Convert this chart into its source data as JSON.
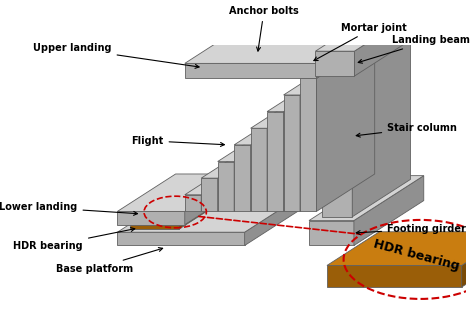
{
  "background_color": "#ffffff",
  "concrete_light": "#d4d4d4",
  "concrete_mid": "#b0b0b0",
  "concrete_dark": "#909090",
  "hdr_top": "#c97d10",
  "hdr_front": "#9a5e08",
  "hdr_side": "#7a4a05",
  "dash_color": "#cc0000",
  "arrow_color": "#000000",
  "text_color": "#000000",
  "labels": {
    "anchor_bolts": "Anchor bolts",
    "mortar_joint": "Mortar joint",
    "upper_landing": "Upper landing",
    "landing_beam": "Landing beam",
    "flight": "Flight",
    "stair_column": "Stair column",
    "lower_landing": "Lower landing",
    "footing_girder": "Footing girder",
    "hdr_bearing_small": "HDR bearing",
    "base_platform": "Base platform",
    "hdr_bearing_large": "HDR bearing"
  },
  "figsize": [
    4.74,
    3.16
  ],
  "dpi": 100
}
